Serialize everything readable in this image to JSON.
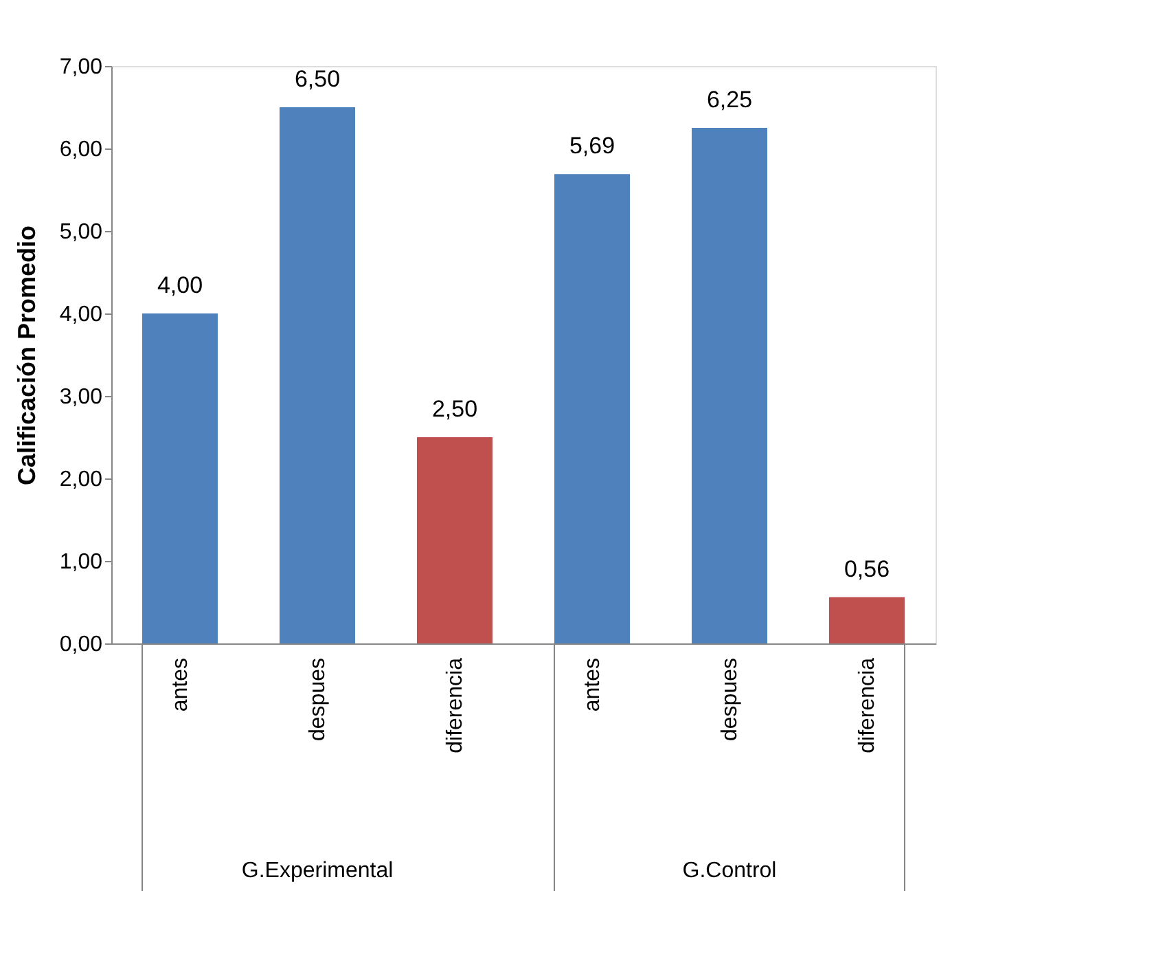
{
  "chart_data": {
    "type": "bar",
    "ylabel": "Calificación Promedio",
    "categories": [
      "antes",
      "despues",
      "diferencia",
      "antes",
      "despues",
      "diferencia"
    ],
    "values": [
      4.0,
      6.5,
      2.5,
      5.69,
      6.25,
      0.56
    ],
    "colors": [
      "#4f81bd",
      "#4f81bd",
      "#c0504d",
      "#4f81bd",
      "#4f81bd",
      "#c0504d"
    ],
    "value_labels": [
      "4,00",
      "6,50",
      "2,50",
      "5,69",
      "6,25",
      "0,56"
    ],
    "ylim": [
      0,
      7
    ],
    "yticks": [
      {
        "value": 0,
        "label": "0,00"
      },
      {
        "value": 1,
        "label": "1,00"
      },
      {
        "value": 2,
        "label": "2,00"
      },
      {
        "value": 3,
        "label": "3,00"
      },
      {
        "value": 4,
        "label": "4,00"
      },
      {
        "value": 5,
        "label": "5,00"
      },
      {
        "value": 6,
        "label": "6,00"
      },
      {
        "value": 7,
        "label": "7,00"
      }
    ],
    "annotations": [
      "G.Experimental",
      "G.Control"
    ],
    "grid": false
  }
}
